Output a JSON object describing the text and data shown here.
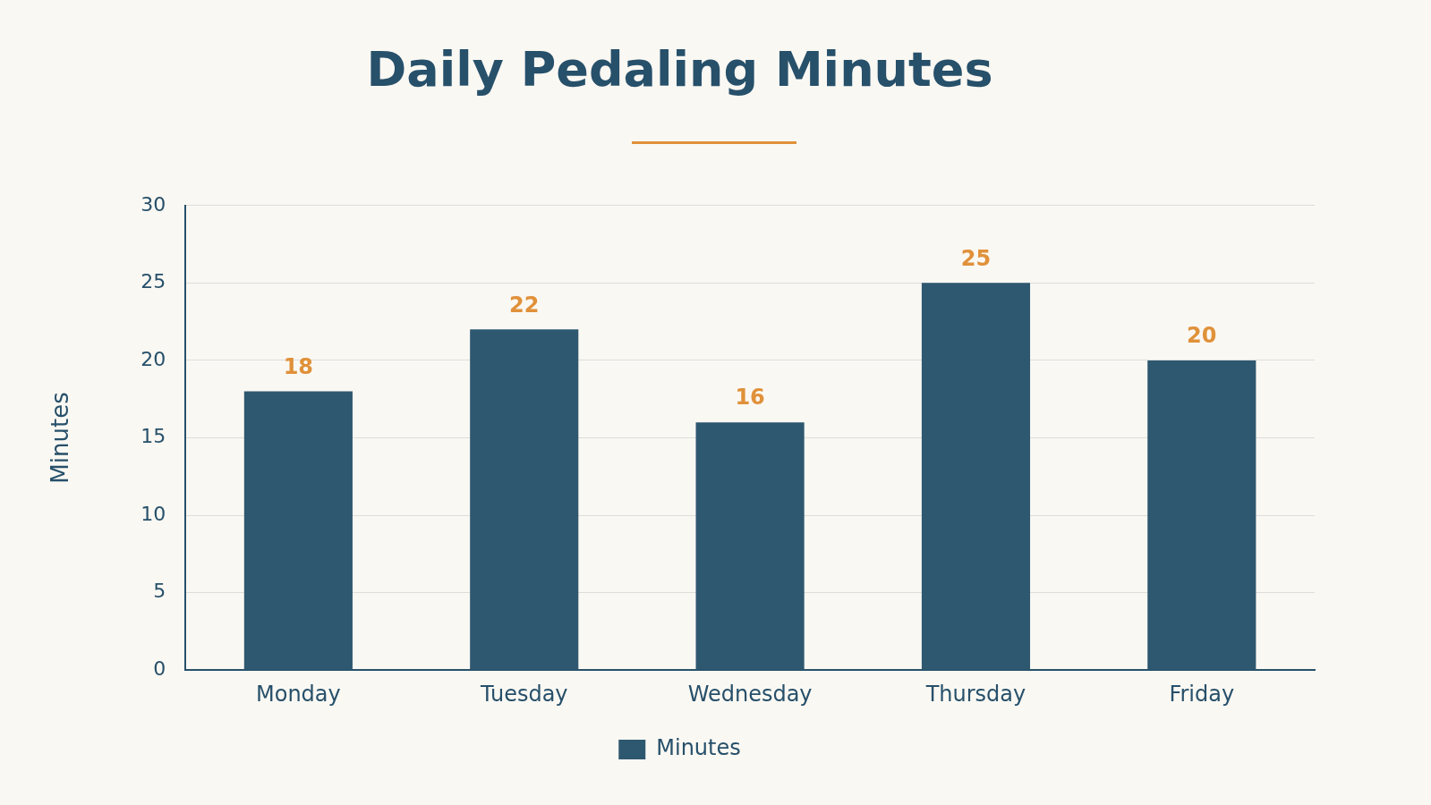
{
  "chart_data": {
    "type": "bar",
    "title": "Daily Pedaling Minutes",
    "ylabel": "Minutes",
    "categories": [
      "Monday",
      "Tuesday",
      "Wednesday",
      "Thursday",
      "Friday"
    ],
    "series": [
      {
        "name": "Minutes",
        "color": "#2e5870",
        "values": [
          18,
          22,
          16,
          25,
          20
        ]
      }
    ],
    "ylim": [
      0,
      30
    ],
    "yticks": [
      0,
      5,
      10,
      15,
      20,
      25,
      30
    ],
    "grid": "y",
    "legend": "bottom",
    "data_labels": true
  }
}
